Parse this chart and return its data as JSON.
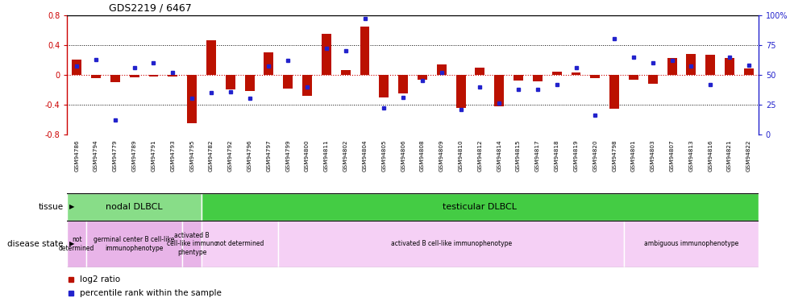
{
  "title": "GDS2219 / 6467",
  "samples": [
    "GSM94786",
    "GSM94794",
    "GSM94779",
    "GSM94789",
    "GSM94791",
    "GSM94793",
    "GSM94795",
    "GSM94782",
    "GSM94792",
    "GSM94796",
    "GSM94797",
    "GSM94799",
    "GSM94800",
    "GSM94811",
    "GSM94802",
    "GSM94804",
    "GSM94805",
    "GSM94806",
    "GSM94808",
    "GSM94809",
    "GSM94810",
    "GSM94812",
    "GSM94814",
    "GSM94815",
    "GSM94817",
    "GSM94818",
    "GSM94819",
    "GSM94820",
    "GSM94798",
    "GSM94801",
    "GSM94803",
    "GSM94807",
    "GSM94813",
    "GSM94816",
    "GSM94821",
    "GSM94822"
  ],
  "log2_ratio": [
    0.2,
    -0.05,
    -0.1,
    -0.03,
    -0.02,
    -0.02,
    -0.65,
    0.46,
    -0.2,
    -0.22,
    0.3,
    -0.19,
    -0.28,
    0.55,
    0.06,
    0.65,
    -0.3,
    -0.25,
    -0.07,
    0.14,
    -0.44,
    0.1,
    -0.42,
    -0.08,
    -0.09,
    0.04,
    0.03,
    -0.05,
    -0.46,
    -0.07,
    -0.12,
    0.22,
    0.28,
    0.27,
    0.22,
    0.08
  ],
  "percentile": [
    57,
    63,
    12,
    56,
    60,
    52,
    30,
    35,
    36,
    30,
    57,
    62,
    40,
    72,
    70,
    97,
    22,
    31,
    45,
    52,
    21,
    40,
    26,
    38,
    38,
    42,
    56,
    16,
    80,
    65,
    60,
    62,
    57,
    42,
    65,
    58
  ],
  "ylim": [
    -0.8,
    0.8
  ],
  "yticks": [
    -0.8,
    -0.4,
    0.0,
    0.4,
    0.8
  ],
  "ytick_labels": [
    "-0.8",
    "-0.4",
    "0",
    "0.4",
    "0.8"
  ],
  "right_yticks": [
    0,
    25,
    50,
    75,
    100
  ],
  "right_ytick_labels": [
    "0",
    "25",
    "50",
    "75",
    "100%"
  ],
  "bar_color": "#bb1100",
  "dot_color": "#2222cc",
  "nodal_color": "#88dd88",
  "testicular_color": "#44cc44",
  "disease_pink_light": "#f0c0f0",
  "disease_pink_dark": "#e0a0e0",
  "tissue_groups": [
    {
      "label": "nodal DLBCL",
      "start": 0,
      "end": 6,
      "color": "#88dd88"
    },
    {
      "label": "testicular DLBCL",
      "start": 7,
      "end": 35,
      "color": "#44cc44"
    }
  ],
  "disease_groups": [
    {
      "label": "not\ndetermined",
      "start": 0,
      "end": 0,
      "color": "#e8b4e8"
    },
    {
      "label": "germinal center B cell-like\nimmunophenotype",
      "start": 1,
      "end": 5,
      "color": "#e8b4e8"
    },
    {
      "label": "activated B\ncell-like immuno\nphentype",
      "start": 6,
      "end": 6,
      "color": "#e8b4e8"
    },
    {
      "label": "not determined",
      "start": 7,
      "end": 10,
      "color": "#f5d0f5"
    },
    {
      "label": "activated B cell-like immunophenotype",
      "start": 11,
      "end": 28,
      "color": "#f5d0f5"
    },
    {
      "label": "ambiguous immunophenotype",
      "start": 29,
      "end": 35,
      "color": "#f5d0f5"
    }
  ],
  "bg_color": "#ffffff"
}
